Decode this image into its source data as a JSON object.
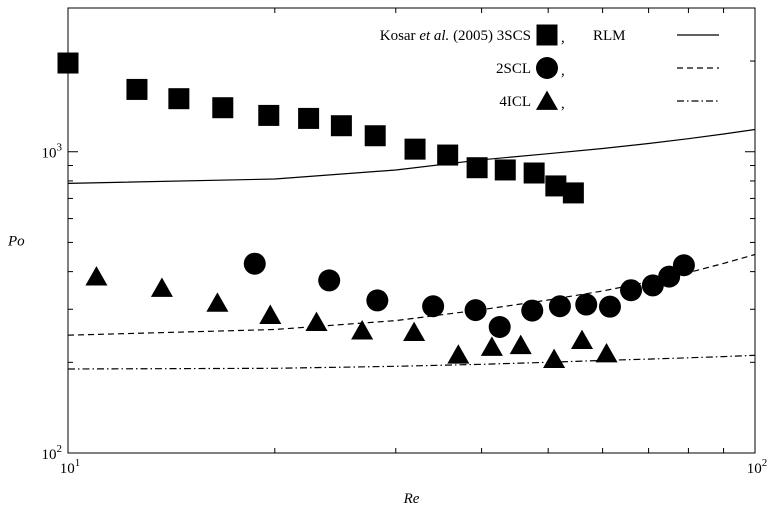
{
  "chart_data": {
    "type": "scatter",
    "xscale": "log",
    "yscale": "log",
    "xlim": [
      10,
      100
    ],
    "ylim": [
      100,
      3000
    ],
    "xlabel": "Re",
    "ylabel": "Po",
    "grid": false,
    "legend_position": "top-right",
    "x_ticks": [
      {
        "value": 10,
        "base": "10",
        "exp": "1"
      },
      {
        "value": 100,
        "base": "10",
        "exp": "2"
      }
    ],
    "y_ticks": [
      {
        "value": 100,
        "base": "10",
        "exp": "2"
      },
      {
        "value": 1000,
        "base": "10",
        "exp": "3"
      }
    ],
    "legend": {
      "source_prefix": "Kosar ",
      "source_italic": "et al.",
      "source_suffix": " (2005) 3SCS",
      "row2_label": "2SCL",
      "row3_label": "4ICL",
      "separator": ",",
      "model_label": "RLM"
    },
    "series": [
      {
        "name": "3SCS",
        "kind": "points",
        "marker": "square",
        "x": [
          10.0,
          12.6,
          14.5,
          16.8,
          19.6,
          22.4,
          25.0,
          28.0,
          32.0,
          35.7,
          39.4,
          43.3,
          47.7,
          51.3,
          54.4
        ],
        "y": [
          1970,
          1610,
          1500,
          1400,
          1320,
          1290,
          1220,
          1130,
          1020,
          975,
          885,
          870,
          850,
          770,
          730
        ]
      },
      {
        "name": "2SCL",
        "kind": "points",
        "marker": "circle",
        "x": [
          18.7,
          24.0,
          28.2,
          34.0,
          39.2,
          42.5,
          47.4,
          52.0,
          56.8,
          61.5,
          66.0,
          71.0,
          75.0,
          78.8
        ],
        "y": [
          425,
          374,
          321,
          307,
          298,
          262,
          297,
          307,
          311,
          306,
          347,
          360,
          385,
          420
        ]
      },
      {
        "name": "4ICL",
        "kind": "points",
        "marker": "triangle",
        "x": [
          11.0,
          13.7,
          16.5,
          19.7,
          23.0,
          26.8,
          31.9,
          37.0,
          41.4,
          45.6,
          51.0,
          56.0,
          60.8
        ],
        "y": [
          385,
          353,
          315,
          287,
          272,
          255,
          252,
          212,
          225,
          228,
          205,
          237,
          214
        ]
      },
      {
        "name": "RLM",
        "kind": "line",
        "style": "solid",
        "x": [
          10,
          20,
          30,
          40,
          50,
          60,
          70,
          80,
          90,
          100
        ],
        "y": [
          785,
          812,
          870,
          940,
          985,
          1025,
          1065,
          1105,
          1145,
          1185
        ]
      },
      {
        "name": "2SCL model",
        "kind": "line",
        "style": "dashed",
        "x": [
          10,
          20,
          30,
          40,
          50,
          60,
          70,
          80,
          90,
          100
        ],
        "y": [
          246,
          257,
          275,
          299,
          322,
          345,
          370,
          397,
          426,
          456
        ]
      },
      {
        "name": "4ICL model",
        "kind": "line",
        "style": "dashdot",
        "x": [
          10,
          20,
          30,
          40,
          50,
          60,
          70,
          80,
          90,
          100
        ],
        "y": [
          190,
          191,
          194,
          197,
          200,
          203,
          205,
          207,
          209,
          211
        ]
      }
    ]
  }
}
